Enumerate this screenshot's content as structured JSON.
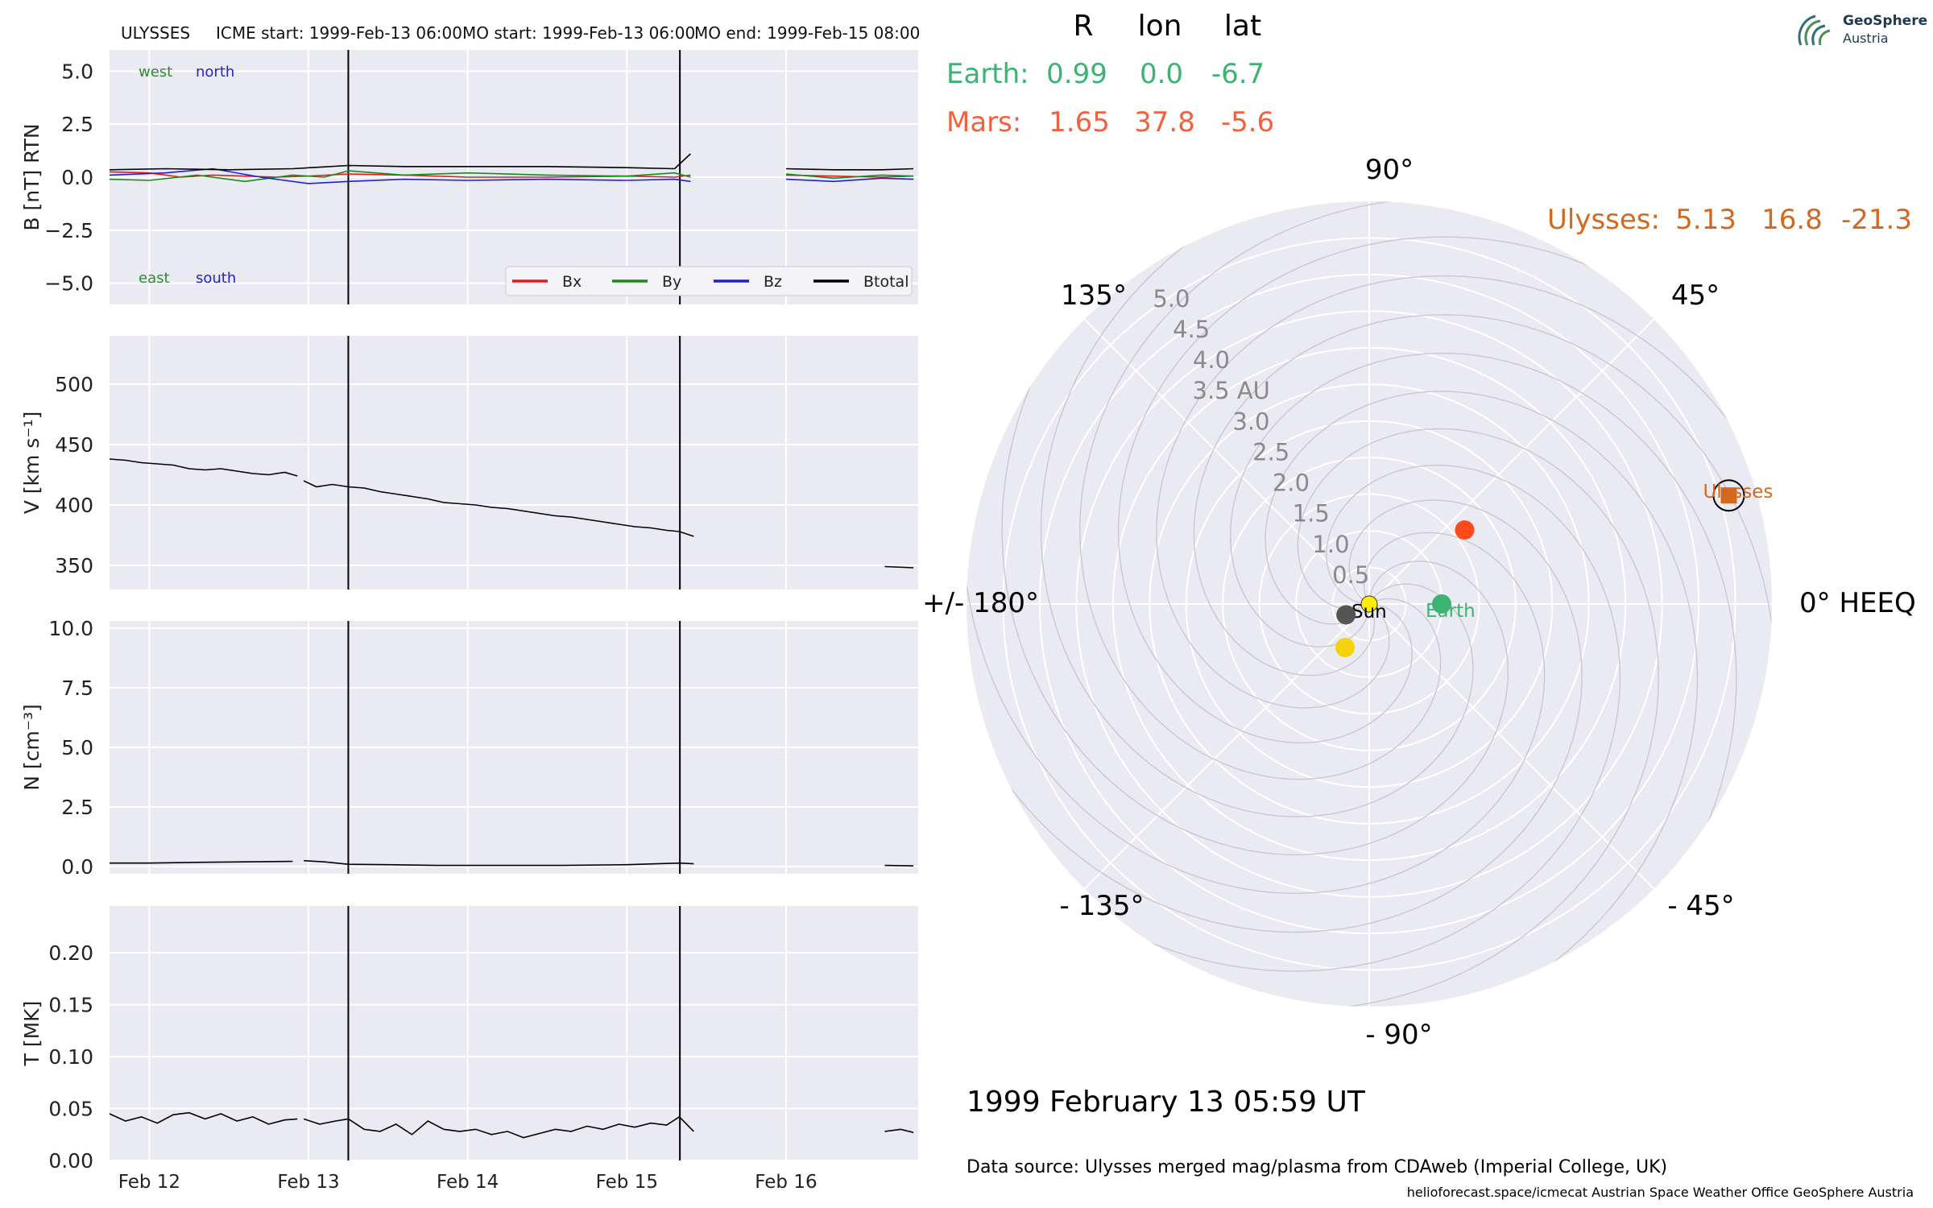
{
  "header": {
    "spacecraft": "ULYSSES",
    "icme_start": "ICME start: 1999-Feb-13 06:00",
    "mo_start": "MO start: 1999-Feb-13 06:00",
    "mo_end": "MO end: 1999-Feb-15 08:00"
  },
  "logo": {
    "name": "GeoSphere",
    "sub": "Austria"
  },
  "position_table": {
    "headers": [
      "R",
      "lon",
      "lat"
    ],
    "rows": [
      {
        "name": "Earth:",
        "R": "0.99",
        "lon": "0.0",
        "lat": "-6.7",
        "color": "#3cb371"
      },
      {
        "name": "Mars:",
        "R": "1.65",
        "lon": "37.8",
        "lat": "-5.6",
        "color": "#f4603e"
      },
      {
        "name": "Ulysses:",
        "R": "5.13",
        "lon": "16.8",
        "lat": "-21.3",
        "color": "#d2691e"
      }
    ]
  },
  "date_label": "1999 February 13  05:59 UT",
  "source_label": "Data source: Ulysses merged mag/plasma from CDAweb (Imperial College, UK)",
  "footer_label": "helioforecast.space/icmecat   Austrian Space Weather Office   GeoSphere Austria",
  "chart_data": [
    {
      "type": "line",
      "panel": "magnetic field",
      "ylabel": "B [nT] RTN",
      "ylim": [
        -6,
        6
      ],
      "yticks": [
        "5.0",
        "2.5",
        "0.0",
        "−2.5",
        "−5.0"
      ],
      "ytick_values": [
        5,
        2.5,
        0,
        -2.5,
        -5
      ],
      "x_ticklabels": [
        "Feb 12",
        "Feb 13",
        "Feb 14",
        "Feb 15",
        "Feb 16"
      ],
      "x_tick_values": [
        12,
        13,
        14,
        15,
        16
      ],
      "xlim": [
        11.75,
        16.83
      ],
      "annotations": [
        {
          "text": "west",
          "color": "#2e8b2e"
        },
        {
          "text": "north",
          "color": "#2222cc"
        },
        {
          "text": "east",
          "color": "#2e8b2e"
        },
        {
          "text": "south",
          "color": "#2222cc"
        }
      ],
      "legend_placement": "lower-right",
      "vlines": [
        13.25,
        15.333
      ],
      "series": [
        {
          "name": "Bx",
          "color": "#e31a1c",
          "segments": [
            {
              "x": [
                11.75,
                12.0,
                12.2,
                12.4,
                12.6,
                12.8,
                13.0,
                13.25,
                13.6,
                14.0,
                14.5,
                15.0,
                15.3,
                15.4
              ],
              "y": [
                0.25,
                0.2,
                0.0,
                0.1,
                0.05,
                0.0,
                0.05,
                0.15,
                0.1,
                0.0,
                0.0,
                0.05,
                0.0,
                0.1
              ]
            },
            {
              "x": [
                16.0,
                16.3,
                16.6,
                16.8
              ],
              "y": [
                0.1,
                0.05,
                0.0,
                0.05
              ]
            }
          ]
        },
        {
          "name": "By",
          "color": "#1a8a1a",
          "segments": [
            {
              "x": [
                11.75,
                12.0,
                12.3,
                12.6,
                12.9,
                13.1,
                13.25,
                13.6,
                14.0,
                14.5,
                15.0,
                15.3,
                15.4
              ],
              "y": [
                -0.1,
                -0.15,
                0.1,
                -0.2,
                0.1,
                0.0,
                0.3,
                0.1,
                0.2,
                0.1,
                0.05,
                0.2,
                0.0
              ]
            },
            {
              "x": [
                16.0,
                16.3,
                16.6,
                16.8
              ],
              "y": [
                0.15,
                -0.05,
                0.1,
                0.05
              ]
            }
          ]
        },
        {
          "name": "Bz",
          "color": "#2020d0",
          "segments": [
            {
              "x": [
                11.75,
                12.1,
                12.4,
                12.7,
                13.0,
                13.25,
                13.6,
                14.0,
                14.5,
                15.0,
                15.3,
                15.4
              ],
              "y": [
                0.1,
                0.2,
                0.4,
                0.0,
                -0.3,
                -0.2,
                -0.1,
                -0.15,
                -0.1,
                -0.15,
                -0.1,
                -0.2
              ]
            },
            {
              "x": [
                16.0,
                16.3,
                16.6,
                16.8
              ],
              "y": [
                -0.1,
                -0.2,
                -0.05,
                -0.1
              ]
            }
          ]
        },
        {
          "name": "Btotal",
          "color": "#000000",
          "segments": [
            {
              "x": [
                11.75,
                12.1,
                12.5,
                12.9,
                13.25,
                13.6,
                14.0,
                14.5,
                15.0,
                15.3,
                15.4
              ],
              "y": [
                0.35,
                0.4,
                0.35,
                0.4,
                0.55,
                0.5,
                0.5,
                0.5,
                0.45,
                0.4,
                1.1
              ]
            },
            {
              "x": [
                16.0,
                16.3,
                16.6,
                16.8
              ],
              "y": [
                0.4,
                0.35,
                0.35,
                0.4
              ]
            }
          ]
        }
      ]
    },
    {
      "type": "line",
      "panel": "velocity",
      "ylabel": "V [km s⁻¹]",
      "ylim": [
        330,
        540
      ],
      "yticks": [
        "500",
        "450",
        "400",
        "350"
      ],
      "ytick_values": [
        500,
        450,
        400,
        350
      ],
      "xlim": [
        11.75,
        16.83
      ],
      "vlines": [
        13.25,
        15.333
      ],
      "series": [
        {
          "name": "V",
          "color": "#000000",
          "segments": [
            {
              "x": [
                11.75,
                11.85,
                11.95,
                12.05,
                12.15,
                12.25,
                12.35,
                12.45,
                12.55,
                12.65,
                12.75,
                12.85,
                12.93
              ],
              "y": [
                438,
                437,
                435,
                434,
                433,
                430,
                429,
                430,
                428,
                426,
                425,
                427,
                424
              ]
            },
            {
              "x": [
                12.97,
                13.05,
                13.15,
                13.25,
                13.35,
                13.45,
                13.55,
                13.65,
                13.75,
                13.85,
                13.95,
                14.05,
                14.15,
                14.25,
                14.35,
                14.45,
                14.55,
                14.65,
                14.75,
                14.85,
                14.95,
                15.05,
                15.15,
                15.25,
                15.33,
                15.42
              ],
              "y": [
                420,
                415,
                417,
                415,
                414,
                411,
                409,
                407,
                405,
                402,
                401,
                400,
                398,
                397,
                395,
                393,
                391,
                390,
                388,
                386,
                384,
                382,
                381,
                379,
                378,
                374
              ]
            },
            {
              "x": [
                16.62,
                16.8
              ],
              "y": [
                349,
                348
              ]
            }
          ]
        }
      ]
    },
    {
      "type": "line",
      "panel": "density",
      "ylabel": "N [cm⁻³]",
      "ylim": [
        -0.3,
        10.3
      ],
      "yticks": [
        "10.0",
        "7.5",
        "5.0",
        "2.5",
        "0.0"
      ],
      "ytick_values": [
        10,
        7.5,
        5,
        2.5,
        0
      ],
      "xlim": [
        11.75,
        16.83
      ],
      "vlines": [
        13.25,
        15.333
      ],
      "series": [
        {
          "name": "N",
          "color": "#000000",
          "segments": [
            {
              "x": [
                11.75,
                12.0,
                12.3,
                12.6,
                12.9
              ],
              "y": [
                0.15,
                0.15,
                0.18,
                0.2,
                0.22
              ]
            },
            {
              "x": [
                12.97,
                13.1,
                13.25,
                13.5,
                13.8,
                14.2,
                14.6,
                15.0,
                15.33,
                15.42
              ],
              "y": [
                0.25,
                0.2,
                0.1,
                0.08,
                0.05,
                0.05,
                0.05,
                0.08,
                0.15,
                0.12
              ]
            },
            {
              "x": [
                16.62,
                16.8
              ],
              "y": [
                0.05,
                0.03
              ]
            }
          ]
        }
      ]
    },
    {
      "type": "line",
      "panel": "temperature",
      "ylabel": "T [MK]",
      "ylim": [
        0,
        0.245
      ],
      "yticks": [
        "0.20",
        "0.15",
        "0.10",
        "0.05",
        "0.00"
      ],
      "ytick_values": [
        0.2,
        0.15,
        0.1,
        0.05,
        0.0
      ],
      "xlim": [
        11.75,
        16.83
      ],
      "vlines": [
        13.25,
        15.333
      ],
      "series": [
        {
          "name": "T",
          "color": "#000000",
          "segments": [
            {
              "x": [
                11.75,
                11.85,
                11.95,
                12.05,
                12.15,
                12.25,
                12.35,
                12.45,
                12.55,
                12.65,
                12.75,
                12.85,
                12.93
              ],
              "y": [
                0.045,
                0.038,
                0.042,
                0.036,
                0.044,
                0.046,
                0.04,
                0.045,
                0.038,
                0.042,
                0.035,
                0.039,
                0.04
              ]
            },
            {
              "x": [
                12.97,
                13.07,
                13.17,
                13.25,
                13.35,
                13.45,
                13.55,
                13.65,
                13.75,
                13.85,
                13.95,
                14.05,
                14.15,
                14.25,
                14.35,
                14.45,
                14.55,
                14.65,
                14.75,
                14.85,
                14.95,
                15.05,
                15.15,
                15.25,
                15.33,
                15.42
              ],
              "y": [
                0.04,
                0.035,
                0.038,
                0.04,
                0.03,
                0.028,
                0.035,
                0.025,
                0.038,
                0.03,
                0.028,
                0.03,
                0.025,
                0.028,
                0.022,
                0.026,
                0.03,
                0.028,
                0.033,
                0.03,
                0.035,
                0.032,
                0.036,
                0.034,
                0.042,
                0.028
              ]
            },
            {
              "x": [
                16.62,
                16.72,
                16.8
              ],
              "y": [
                0.028,
                0.03,
                0.027
              ]
            }
          ]
        }
      ]
    },
    {
      "type": "scatter",
      "panel": "polar orbit plot",
      "coordinate_system": "HEEQ",
      "theta_labels": [
        "0° HEEQ",
        "45°",
        "90°",
        "135°",
        "+/- 180°",
        "- 135°",
        "- 90°",
        "- 45°"
      ],
      "theta_label_angles": [
        0,
        45,
        90,
        135,
        180,
        -135,
        -90,
        -45
      ],
      "r_labels": [
        "0.5",
        "1.0",
        "1.5",
        "2.0",
        "2.5",
        "3.0",
        "3.5 AU",
        "4.0",
        "4.5",
        "5.0"
      ],
      "r_label_values": [
        0.5,
        1.0,
        1.5,
        2.0,
        2.5,
        3.0,
        3.5,
        4.0,
        4.5,
        5.0
      ],
      "rlim": [
        0,
        5.5
      ],
      "spiral_count": 12,
      "points": [
        {
          "name": "Sun",
          "r": 0.0,
          "lon": 0.0,
          "color": "#ffee00",
          "marker": "circle",
          "label": "Sun",
          "label_color": "#000000"
        },
        {
          "name": "Earth",
          "r": 0.99,
          "lon": 0.0,
          "color": "#3cb371",
          "marker": "circle",
          "label": "Earth",
          "label_color": "#3cb371"
        },
        {
          "name": "Mars",
          "r": 1.65,
          "lon": 37.8,
          "color": "#ff4a1c",
          "marker": "circle"
        },
        {
          "name": "Ulysses",
          "r": 5.13,
          "lon": 16.8,
          "color": "#d2691e",
          "marker": "square",
          "ring": true,
          "label": "Ulysses",
          "label_color": "#d2691e"
        },
        {
          "r": 0.35,
          "lon": -155.0,
          "color": "#555555",
          "marker": "circle"
        },
        {
          "r": 0.68,
          "lon": -119.0,
          "color": "#f5d20a",
          "marker": "circle"
        }
      ]
    }
  ]
}
